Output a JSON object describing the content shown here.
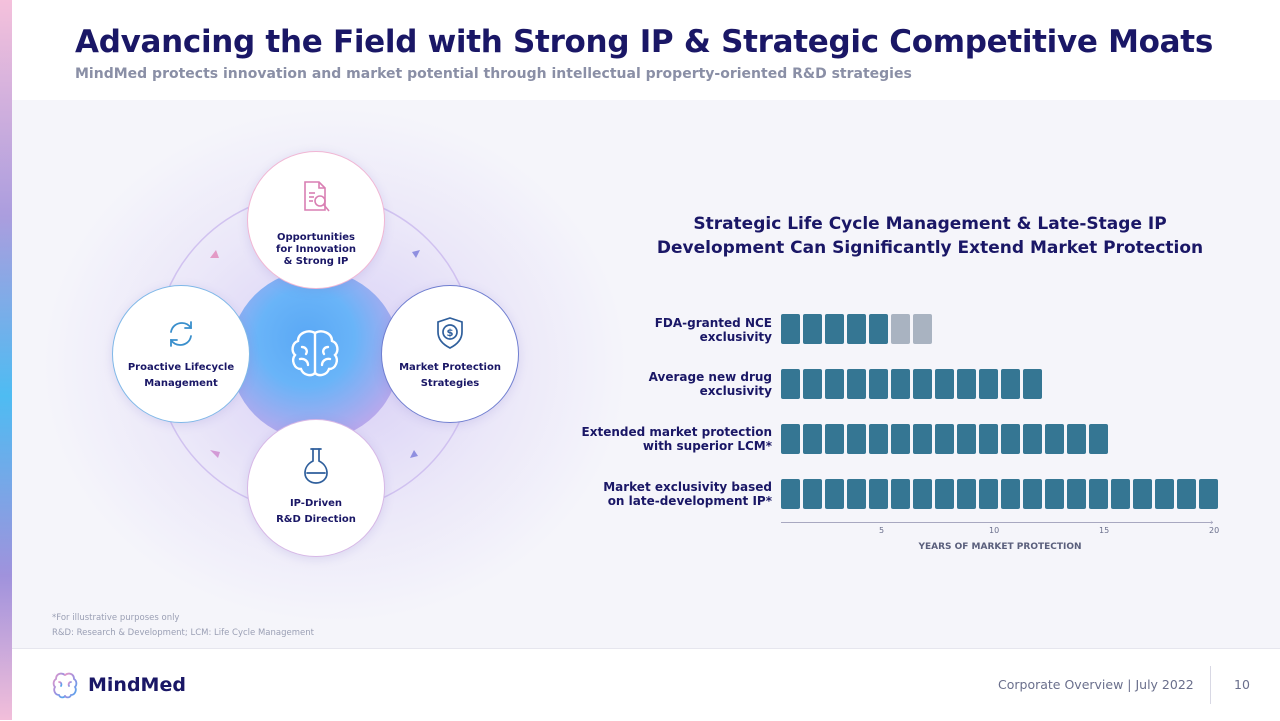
{
  "header": {
    "title": "Advancing the Field with Strong IP & Strategic Competitive Moats",
    "subtitle": "MindMed protects innovation and market potential through intellectual property-oriented R&D strategies"
  },
  "cycle": {
    "top": {
      "line1": "Opportunities",
      "line2": "for Innovation",
      "line3": "& Strong IP",
      "icon": "document-search-icon"
    },
    "left": {
      "line1": "Proactive Lifecycle",
      "line2": "Management",
      "icon": "refresh-cycle-icon"
    },
    "right": {
      "line1": "Market Protection",
      "line2": "Strategies",
      "icon": "shield-dollar-icon"
    },
    "bottom": {
      "line1": "IP-Driven",
      "line2": "R&D Direction",
      "icon": "flask-icon"
    },
    "center_icon": "brain-icon"
  },
  "chart_title": {
    "line1": "Strategic Life Cycle Management & Late-Stage IP",
    "line2": "Development Can Significantly Extend Market Protection"
  },
  "chart_data": {
    "type": "bar",
    "categories": [
      "FDA-granted NCE exclusivity",
      "Average new drug exclusivity",
      "Extended market protection with superior LCM*",
      "Market exclusivity based on late-development IP*"
    ],
    "label_lines": [
      [
        "FDA-granted NCE",
        "exclusivity"
      ],
      [
        "Average new drug",
        "exclusivity"
      ],
      [
        "Extended market protection",
        "with superior LCM*"
      ],
      [
        "Market exclusivity based",
        "on late-development IP*"
      ]
    ],
    "values": [
      5,
      12,
      15,
      20
    ],
    "extra_values": [
      2,
      0,
      0,
      0
    ],
    "xlabel": "YEARS OF MARKET PROTECTION",
    "xticks": [
      "5",
      "10",
      "15",
      "20"
    ],
    "xlim": [
      0,
      20
    ],
    "colors": {
      "main": "#357693",
      "extra": "#a9b3c1"
    }
  },
  "footnotes": {
    "line1": "*For illustrative purposes only",
    "line2": "R&D: Research & Development; LCM: Life Cycle Management"
  },
  "footer": {
    "brand": "MindMed",
    "doc_info": "Corporate Overview | July 2022",
    "page_number": "10"
  }
}
